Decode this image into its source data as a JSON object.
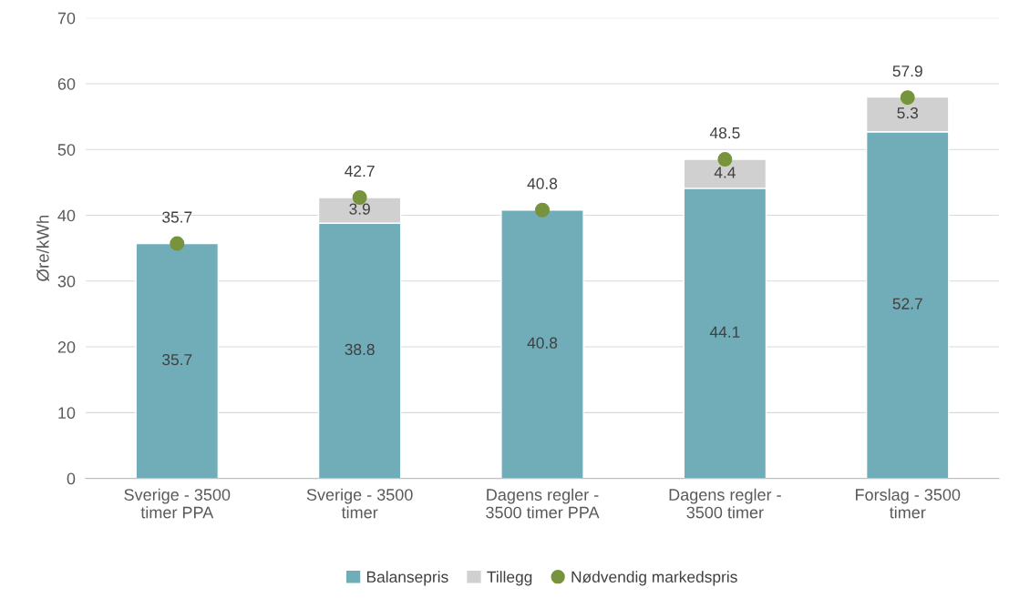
{
  "chart_data": {
    "type": "bar",
    "stacked": true,
    "ylabel": "Øre/kWh",
    "categories": [
      "Sverige - 3500\ntimer PPA",
      "Sverige - 3500\ntimer",
      "Dagens regler -\n3500 timer PPA",
      "Dagens regler -\n3500 timer",
      "Forslag - 3500\ntimer"
    ],
    "series": [
      {
        "name": "Balansepris",
        "color": "#70adb8",
        "values": [
          35.7,
          38.8,
          40.8,
          44.1,
          52.7
        ]
      },
      {
        "name": "Tillegg",
        "color": "#d0d0d0",
        "values": [
          null,
          3.9,
          null,
          4.4,
          5.3
        ]
      },
      {
        "name": "Nødvendig markedspris",
        "type": "scatter",
        "color": "#77933c",
        "values": [
          35.7,
          42.7,
          40.8,
          48.5,
          57.9
        ]
      }
    ],
    "data_labels": true,
    "ylim": [
      0,
      70
    ],
    "yticks": [
      0,
      10,
      20,
      30,
      40,
      50,
      60,
      70
    ],
    "grid": "y",
    "legend": "bottom",
    "marker": "circle"
  }
}
